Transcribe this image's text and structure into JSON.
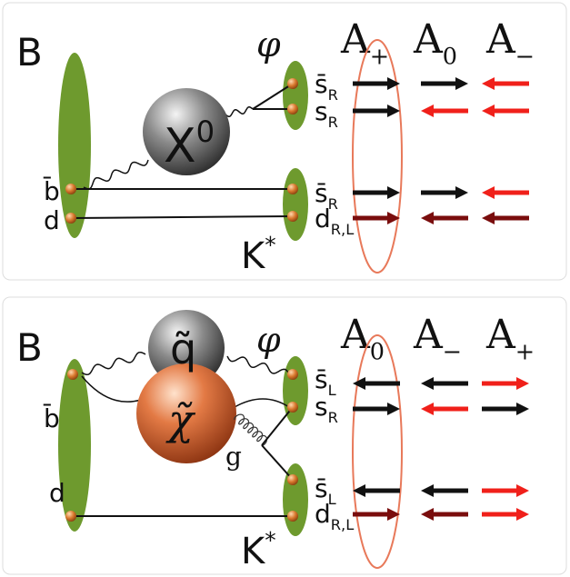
{
  "panels": [
    {
      "meson": "B",
      "headers": [
        {
          "symbol": "A",
          "sub": "+"
        },
        {
          "symbol": "A",
          "sub": "0"
        },
        {
          "symbol": "A",
          "sub": "−"
        }
      ],
      "mediators": [
        {
          "symbol": "X",
          "sup": "0"
        }
      ],
      "phi": "φ",
      "kstar": {
        "symbol": "K",
        "sup": "*"
      },
      "b_quarks": [
        "b̄",
        "d"
      ],
      "quarks": [
        {
          "symbol": "s̄",
          "sub": "R"
        },
        {
          "symbol": "s",
          "sub": "R"
        },
        {
          "symbol": "s̄",
          "sub": "R"
        },
        {
          "symbol": "d",
          "sub": "R,L"
        }
      ]
    },
    {
      "meson": "B",
      "headers": [
        {
          "symbol": "A",
          "sub": "0"
        },
        {
          "symbol": "A",
          "sub": "−"
        },
        {
          "symbol": "A",
          "sub": "+"
        }
      ],
      "mediators": [
        {
          "symbol": "q̃"
        },
        {
          "symbol": "χ̃"
        }
      ],
      "gluon": "g",
      "phi": "φ",
      "kstar": {
        "symbol": "K",
        "sup": "*"
      },
      "b_quarks": [
        "b̄",
        "d"
      ],
      "quarks": [
        {
          "symbol": "s̄",
          "sub": "L"
        },
        {
          "symbol": "s",
          "sub": "R"
        },
        {
          "symbol": "s̄",
          "sub": "L"
        },
        {
          "symbol": "d",
          "sub": "R,L"
        }
      ]
    }
  ]
}
